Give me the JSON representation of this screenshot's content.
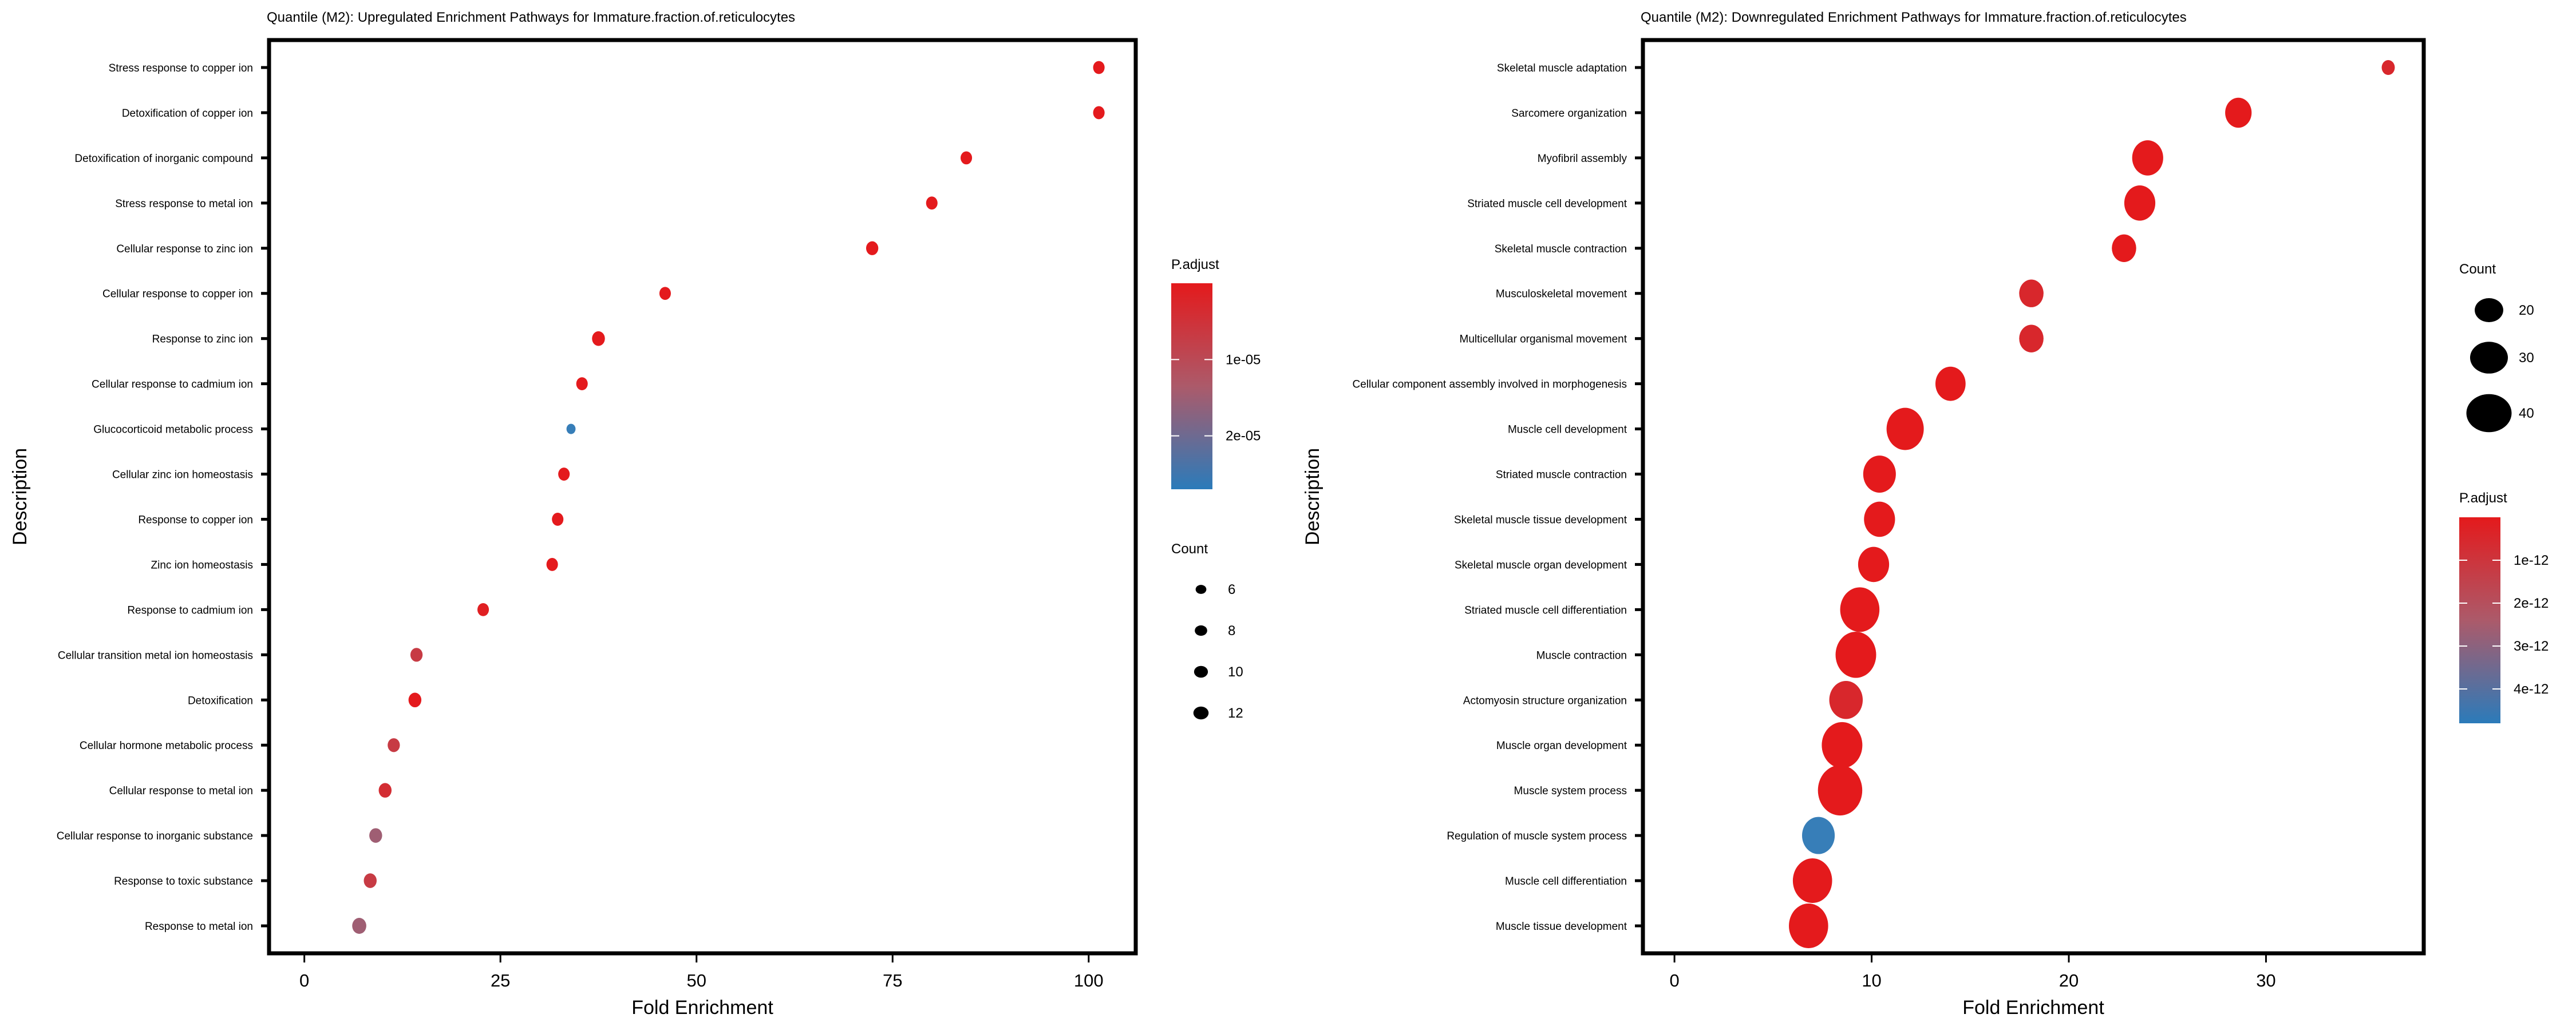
{
  "chart_data": [
    {
      "type": "scatter",
      "subtype": "dot-plot",
      "title": "Quantile (M2): Upregulated Enrichment Pathways for Immature.fraction.of.reticulocytes",
      "xlabel": "Fold Enrichment",
      "ylabel": "Description",
      "xlim": [
        -4.5,
        106
      ],
      "xticks": [
        "0",
        "25",
        "50",
        "75",
        "100"
      ],
      "xtick_values": [
        0,
        25,
        50,
        75,
        100
      ],
      "grid": false,
      "legend_placement": "right",
      "color_legend": {
        "title": "P.adjust",
        "labels": [
          "1e-05",
          "2e-05"
        ],
        "label_values": [
          1e-05,
          2e-05
        ],
        "range": [
          0,
          2.7e-05
        ],
        "low_color": "#E41A1C",
        "high_color": "#377EB8"
      },
      "size_legend": {
        "title": "Count",
        "labels": [
          "6",
          "8",
          "10",
          "12"
        ],
        "values": [
          6,
          8,
          10,
          12
        ]
      },
      "points": [
        {
          "label": "Stress response to copper ion",
          "fold_enrichment": 101.3,
          "count": 8,
          "p_adjust": 1e-07
        },
        {
          "label": "Detoxification of copper ion",
          "fold_enrichment": 101.3,
          "count": 8,
          "p_adjust": 1e-07
        },
        {
          "label": "Detoxification of inorganic compound",
          "fold_enrichment": 84.4,
          "count": 8,
          "p_adjust": 1e-07
        },
        {
          "label": "Stress response to metal ion",
          "fold_enrichment": 80.0,
          "count": 8,
          "p_adjust": 1e-07
        },
        {
          "label": "Cellular response to zinc ion",
          "fold_enrichment": 72.4,
          "count": 9,
          "p_adjust": 1e-07
        },
        {
          "label": "Cellular response to copper ion",
          "fold_enrichment": 46.0,
          "count": 8,
          "p_adjust": 1e-07
        },
        {
          "label": "Response to zinc ion",
          "fold_enrichment": 37.5,
          "count": 10,
          "p_adjust": 1e-07
        },
        {
          "label": "Cellular response to cadmium ion",
          "fold_enrichment": 35.4,
          "count": 8,
          "p_adjust": 1e-07
        },
        {
          "label": "Glucocorticoid metabolic process",
          "fold_enrichment": 34.0,
          "count": 5,
          "p_adjust": 2.7e-05
        },
        {
          "label": "Cellular zinc ion homeostasis",
          "fold_enrichment": 33.1,
          "count": 8,
          "p_adjust": 1e-07
        },
        {
          "label": "Response to copper ion",
          "fold_enrichment": 32.3,
          "count": 8,
          "p_adjust": 1e-07
        },
        {
          "label": "Zinc ion homeostasis",
          "fold_enrichment": 31.6,
          "count": 8,
          "p_adjust": 1e-07
        },
        {
          "label": "Response to cadmium ion",
          "fold_enrichment": 22.8,
          "count": 8,
          "p_adjust": 1e-06
        },
        {
          "label": "Cellular transition metal ion homeostasis",
          "fold_enrichment": 14.3,
          "count": 9,
          "p_adjust": 7e-06
        },
        {
          "label": "Detoxification",
          "fold_enrichment": 14.1,
          "count": 10,
          "p_adjust": 1e-07
        },
        {
          "label": "Cellular hormone metabolic process",
          "fold_enrichment": 11.4,
          "count": 9,
          "p_adjust": 7e-06
        },
        {
          "label": "Cellular response to metal ion",
          "fold_enrichment": 10.3,
          "count": 10,
          "p_adjust": 4e-06
        },
        {
          "label": "Cellular response to inorganic substance",
          "fold_enrichment": 9.1,
          "count": 10,
          "p_adjust": 1.5e-05
        },
        {
          "label": "Response to toxic substance",
          "fold_enrichment": 8.4,
          "count": 10,
          "p_adjust": 7e-06
        },
        {
          "label": "Response to metal ion",
          "fold_enrichment": 7.0,
          "count": 12,
          "p_adjust": 1.5e-05
        }
      ]
    },
    {
      "type": "scatter",
      "subtype": "dot-plot",
      "title": "Quantile (M2): Downregulated Enrichment Pathways for Immature.fraction.of.reticulocytes",
      "xlabel": "Fold Enrichment",
      "ylabel": "Description",
      "xlim": [
        -1.6,
        38
      ],
      "xticks": [
        "0",
        "10",
        "20",
        "30"
      ],
      "xtick_values": [
        0,
        10,
        20,
        30
      ],
      "grid": false,
      "legend_placement": "right",
      "size_legend": {
        "title": "Count",
        "labels": [
          "20",
          "30",
          "40"
        ],
        "values": [
          20,
          30,
          40
        ]
      },
      "color_legend": {
        "title": "P.adjust",
        "labels": [
          "1e-12",
          "2e-12",
          "3e-12",
          "4e-12"
        ],
        "label_values": [
          1e-12,
          2e-12,
          3e-12,
          4e-12
        ],
        "range": [
          0,
          4.8e-12
        ],
        "low_color": "#E41A1C",
        "high_color": "#377EB8"
      },
      "points": [
        {
          "label": "Skeletal muscle adaptation",
          "fold_enrichment": 36.2,
          "count": 10,
          "p_adjust": 5e-13
        },
        {
          "label": "Sarcomere organization",
          "fold_enrichment": 28.6,
          "count": 20,
          "p_adjust": 1e-14
        },
        {
          "label": "Myofibril assembly",
          "fold_enrichment": 24.0,
          "count": 25,
          "p_adjust": 1e-14
        },
        {
          "label": "Striated muscle cell development",
          "fold_enrichment": 23.6,
          "count": 25,
          "p_adjust": 1e-14
        },
        {
          "label": "Skeletal muscle contraction",
          "fold_enrichment": 22.8,
          "count": 18,
          "p_adjust": 1e-14
        },
        {
          "label": "Musculoskeletal movement",
          "fold_enrichment": 18.1,
          "count": 18,
          "p_adjust": 5e-13
        },
        {
          "label": "Multicellular organismal movement",
          "fold_enrichment": 18.1,
          "count": 18,
          "p_adjust": 5e-13
        },
        {
          "label": "Cellular component assembly involved in morphogenesis",
          "fold_enrichment": 14.0,
          "count": 24,
          "p_adjust": 1e-14
        },
        {
          "label": "Muscle cell development",
          "fold_enrichment": 11.7,
          "count": 33,
          "p_adjust": 1e-14
        },
        {
          "label": "Striated muscle contraction",
          "fold_enrichment": 10.4,
          "count": 27,
          "p_adjust": 1e-14
        },
        {
          "label": "Skeletal muscle tissue development",
          "fold_enrichment": 10.4,
          "count": 25,
          "p_adjust": 1e-14
        },
        {
          "label": "Skeletal muscle organ development",
          "fold_enrichment": 10.1,
          "count": 25,
          "p_adjust": 1e-14
        },
        {
          "label": "Striated muscle cell differentiation",
          "fold_enrichment": 9.4,
          "count": 36,
          "p_adjust": 1e-14
        },
        {
          "label": "Muscle contraction",
          "fold_enrichment": 9.2,
          "count": 38,
          "p_adjust": 1e-14
        },
        {
          "label": "Actomyosin structure organization",
          "fold_enrichment": 8.7,
          "count": 28,
          "p_adjust": 5e-13
        },
        {
          "label": "Muscle organ development",
          "fold_enrichment": 8.5,
          "count": 38,
          "p_adjust": 1e-14
        },
        {
          "label": "Muscle system process",
          "fold_enrichment": 8.4,
          "count": 44,
          "p_adjust": 1e-14
        },
        {
          "label": "Regulation of muscle system process",
          "fold_enrichment": 7.3,
          "count": 27,
          "p_adjust": 4.8e-12
        },
        {
          "label": "Muscle cell differentiation",
          "fold_enrichment": 7.0,
          "count": 36,
          "p_adjust": 1e-14
        },
        {
          "label": "Muscle tissue development",
          "fold_enrichment": 6.8,
          "count": 36,
          "p_adjust": 1e-14
        }
      ]
    }
  ]
}
